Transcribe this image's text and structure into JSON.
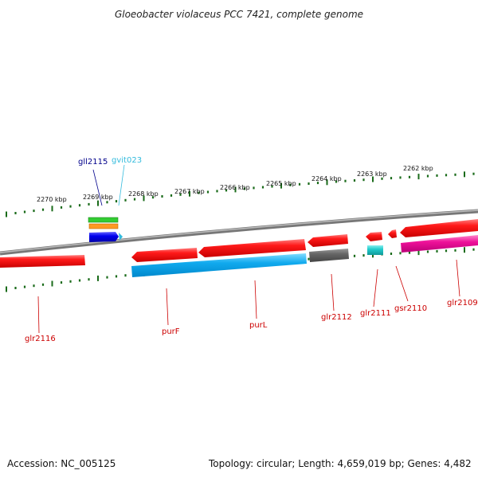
{
  "title": "Gloeobacter violaceus PCC 7421, complete genome",
  "footer": {
    "accession": "Accession: NC_005125",
    "summary": "Topology: circular; Length: 4,659,019 bp; Genes: 4,482"
  },
  "scale_labels": [
    "2270 kbp",
    "2269 kbp",
    "2268 kbp",
    "2267 kbp",
    "2266 kbp",
    "2265 kbp",
    "2264 kbp",
    "2263 kbp",
    "2262 kbp"
  ],
  "genes": [
    {
      "label": "gll2115",
      "color": "#00008b"
    },
    {
      "label": "gvit023",
      "color": "#33bbdd"
    },
    {
      "label": "glr2116",
      "color": "#cc0000"
    },
    {
      "label": "purF",
      "color": "#cc0000"
    },
    {
      "label": "purL",
      "color": "#cc0000"
    },
    {
      "label": "glr2112",
      "color": "#cc0000"
    },
    {
      "label": "glr2111",
      "color": "#cc0000"
    },
    {
      "label": "gsr2110",
      "color": "#cc0000"
    },
    {
      "label": "glr2109",
      "color": "#cc0000"
    }
  ],
  "colors": {
    "backbone": "#888888",
    "ticks": "#1a6b1a",
    "forward_cds": "#e60000",
    "reverse_cds_track": "#00aaee",
    "pseudo": "#666666",
    "rna": "#22cccc",
    "misc": "#ee1199"
  }
}
